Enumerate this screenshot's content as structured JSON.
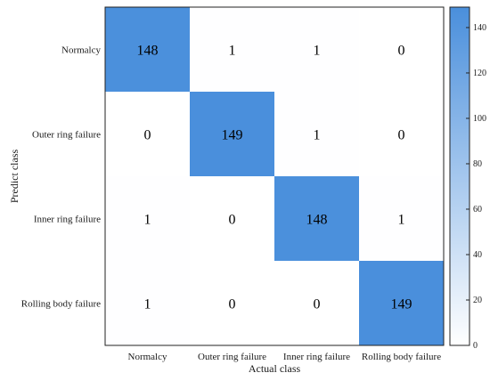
{
  "chart_data": {
    "type": "heatmap",
    "title": "",
    "xlabel": "Actual class",
    "ylabel": "Predict class",
    "x_categories": [
      "Normalcy",
      "Outer ring failure",
      "Inner ring failure",
      "Rolling body failure"
    ],
    "y_categories": [
      "Normalcy",
      "Outer ring failure",
      "Inner ring failure",
      "Rolling body failure"
    ],
    "values": [
      [
        148,
        1,
        1,
        0
      ],
      [
        0,
        149,
        1,
        0
      ],
      [
        1,
        0,
        148,
        1
      ],
      [
        1,
        0,
        0,
        149
      ]
    ],
    "colorbar": {
      "range": [
        0,
        149
      ],
      "ticks": [
        0,
        20,
        40,
        60,
        80,
        100,
        120,
        140
      ],
      "tick_labels": [
        "0",
        "20",
        "40",
        "60",
        "80",
        "100",
        "120",
        "140"
      ]
    },
    "colors": {
      "high": "#4a8fdc",
      "low": "#ffffff"
    }
  }
}
